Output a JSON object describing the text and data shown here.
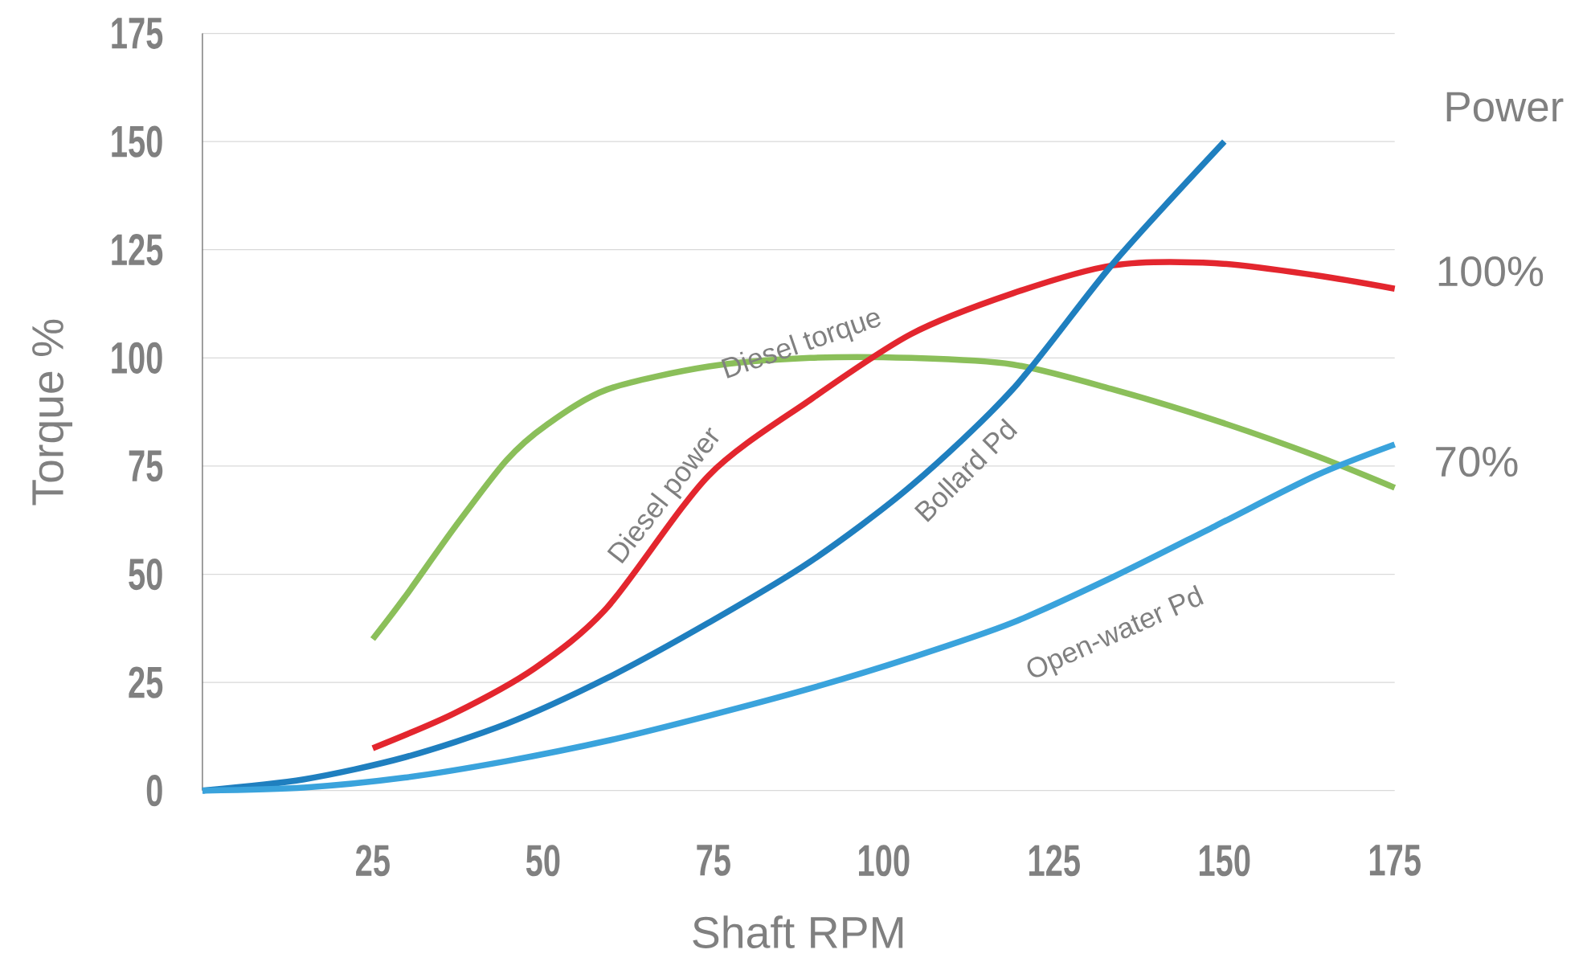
{
  "chart_data": {
    "type": "line",
    "xlabel": "Shaft RPM",
    "ylabel": "Torque %",
    "xlim": [
      0,
      175
    ],
    "ylim": [
      0,
      175
    ],
    "xticks": [
      25,
      50,
      75,
      100,
      125,
      150,
      175
    ],
    "yticks": [
      0,
      25,
      50,
      75,
      100,
      125,
      150,
      175
    ],
    "grid": "y",
    "annotations": [
      "Power",
      "100%",
      "70%"
    ],
    "series": [
      {
        "name": "Diesel torque",
        "color": "#8bbf5a",
        "x": [
          25,
          29.7,
          37.1,
          44.6,
          50.5,
          59.4,
          74.3,
          89.2,
          104,
          118.9,
          133.7,
          148.6,
          163.4,
          175
        ],
        "values": [
          35,
          44.7,
          61,
          76.3,
          84.5,
          92.7,
          98,
          100,
          100,
          98.5,
          92.7,
          85.6,
          77.4,
          70
        ]
      },
      {
        "name": "Diesel power",
        "color": "#e3262e",
        "x": [
          25,
          36.9,
          48.8,
          59.4,
          74.3,
          89.2,
          104,
          118.9,
          133.7,
          148.6,
          163.4,
          175
        ],
        "values": [
          9.8,
          17.8,
          28.3,
          42.3,
          72.8,
          90.3,
          105.5,
          114.9,
          121.4,
          121.9,
          119.1,
          116
        ]
      },
      {
        "name": "Bollard Pd",
        "color": "#1f7fbf",
        "x": [
          0,
          14.9,
          29.7,
          44.6,
          59.4,
          74.3,
          89.2,
          104,
          118.9,
          133.7,
          150
        ],
        "values": [
          0,
          2.6,
          7.7,
          15.4,
          26,
          38.8,
          52.9,
          70.4,
          92.7,
          121.9,
          150
        ]
      },
      {
        "name": "Open-water Pd",
        "color": "#3aa3dc",
        "x": [
          0,
          14.9,
          29.7,
          44.6,
          59.4,
          74.3,
          89.2,
          104,
          118.9,
          133.7,
          148.6,
          163.4,
          175
        ],
        "values": [
          0,
          0.7,
          3,
          6.8,
          11.5,
          17.3,
          23.6,
          30.7,
          38.8,
          49.4,
          61.1,
          72.8,
          80
        ]
      }
    ]
  }
}
